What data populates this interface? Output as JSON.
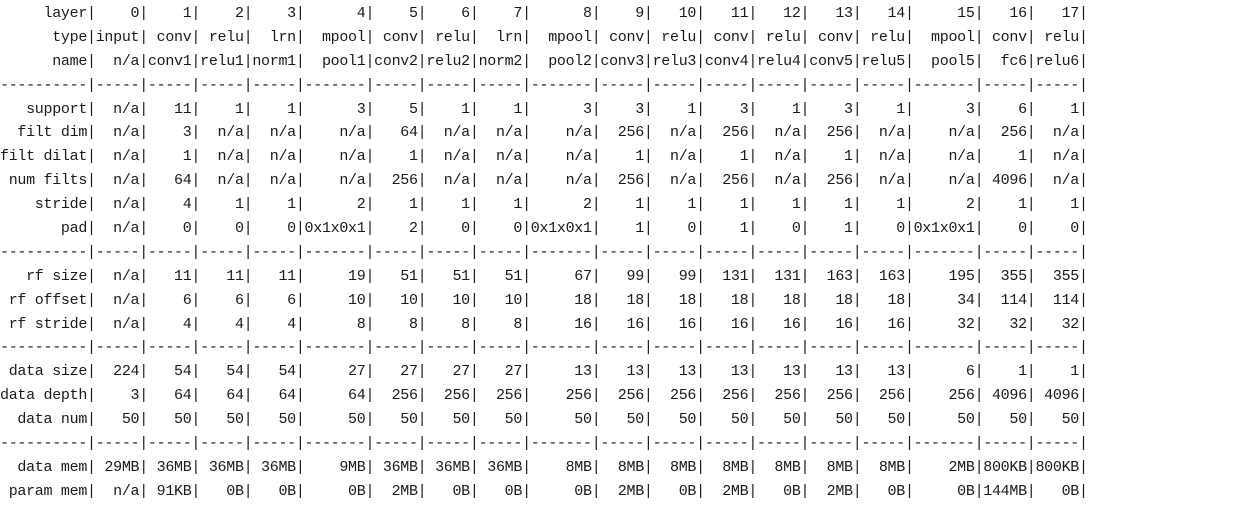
{
  "title": "",
  "table": {
    "columns_widths": null,
    "label_width": 10,
    "header_rows": [
      {
        "label": "layer",
        "cells": [
          "0",
          "1",
          "2",
          "3",
          "4",
          "5",
          "6",
          "7",
          "8",
          "9",
          "10",
          "11",
          "12",
          "13",
          "14",
          "15",
          "16",
          "17"
        ]
      },
      {
        "label": "type",
        "cells": [
          "input",
          "conv",
          "relu",
          "lrn",
          "mpool",
          "conv",
          "relu",
          "lrn",
          "mpool",
          "conv",
          "relu",
          "conv",
          "relu",
          "conv",
          "relu",
          "mpool",
          "conv",
          "relu"
        ]
      },
      {
        "label": "name",
        "cells": [
          "n/a",
          "conv1",
          "relu1",
          "norm1",
          "pool1",
          "conv2",
          "relu2",
          "norm2",
          "pool2",
          "conv3",
          "relu3",
          "conv4",
          "relu4",
          "conv5",
          "relu5",
          "pool5",
          "fc6",
          "relu6"
        ]
      }
    ],
    "sections": [
      [
        {
          "label": "support",
          "cells": [
            "n/a",
            "11",
            "1",
            "1",
            "3",
            "5",
            "1",
            "1",
            "3",
            "3",
            "1",
            "3",
            "1",
            "3",
            "1",
            "3",
            "6",
            "1"
          ]
        },
        {
          "label": "filt dim",
          "cells": [
            "n/a",
            "3",
            "n/a",
            "n/a",
            "n/a",
            "64",
            "n/a",
            "n/a",
            "n/a",
            "256",
            "n/a",
            "256",
            "n/a",
            "256",
            "n/a",
            "n/a",
            "256",
            "n/a"
          ]
        },
        {
          "label": "filt dilat",
          "cells": [
            "n/a",
            "1",
            "n/a",
            "n/a",
            "n/a",
            "1",
            "n/a",
            "n/a",
            "n/a",
            "1",
            "n/a",
            "1",
            "n/a",
            "1",
            "n/a",
            "n/a",
            "1",
            "n/a"
          ]
        },
        {
          "label": "num filts",
          "cells": [
            "n/a",
            "64",
            "n/a",
            "n/a",
            "n/a",
            "256",
            "n/a",
            "n/a",
            "n/a",
            "256",
            "n/a",
            "256",
            "n/a",
            "256",
            "n/a",
            "n/a",
            "4096",
            "n/a"
          ]
        },
        {
          "label": "stride",
          "cells": [
            "n/a",
            "4",
            "1",
            "1",
            "2",
            "1",
            "1",
            "1",
            "2",
            "1",
            "1",
            "1",
            "1",
            "1",
            "1",
            "2",
            "1",
            "1"
          ]
        },
        {
          "label": "pad",
          "cells": [
            "n/a",
            "0",
            "0",
            "0",
            "0x1x0x1",
            "2",
            "0",
            "0",
            "0x1x0x1",
            "1",
            "0",
            "1",
            "0",
            "1",
            "0",
            "0x1x0x1",
            "0",
            "0"
          ]
        }
      ],
      [
        {
          "label": "rf size",
          "cells": [
            "n/a",
            "11",
            "11",
            "11",
            "19",
            "51",
            "51",
            "51",
            "67",
            "99",
            "99",
            "131",
            "131",
            "163",
            "163",
            "195",
            "355",
            "355"
          ]
        },
        {
          "label": "rf offset",
          "cells": [
            "n/a",
            "6",
            "6",
            "6",
            "10",
            "10",
            "10",
            "10",
            "18",
            "18",
            "18",
            "18",
            "18",
            "18",
            "18",
            "34",
            "114",
            "114"
          ]
        },
        {
          "label": "rf stride",
          "cells": [
            "n/a",
            "4",
            "4",
            "4",
            "8",
            "8",
            "8",
            "8",
            "16",
            "16",
            "16",
            "16",
            "16",
            "16",
            "16",
            "32",
            "32",
            "32"
          ]
        }
      ],
      [
        {
          "label": "data size",
          "cells": [
            "224",
            "54",
            "54",
            "54",
            "27",
            "27",
            "27",
            "27",
            "13",
            "13",
            "13",
            "13",
            "13",
            "13",
            "13",
            "6",
            "1",
            "1"
          ]
        },
        {
          "label": "data depth",
          "cells": [
            "3",
            "64",
            "64",
            "64",
            "64",
            "256",
            "256",
            "256",
            "256",
            "256",
            "256",
            "256",
            "256",
            "256",
            "256",
            "256",
            "4096",
            "4096"
          ]
        },
        {
          "label": "data num",
          "cells": [
            "50",
            "50",
            "50",
            "50",
            "50",
            "50",
            "50",
            "50",
            "50",
            "50",
            "50",
            "50",
            "50",
            "50",
            "50",
            "50",
            "50",
            "50"
          ]
        }
      ],
      [
        {
          "label": "data mem",
          "cells": [
            "29MB",
            "36MB",
            "36MB",
            "36MB",
            "9MB",
            "36MB",
            "36MB",
            "36MB",
            "8MB",
            "8MB",
            "8MB",
            "8MB",
            "8MB",
            "8MB",
            "8MB",
            "2MB",
            "800KB",
            "800KB"
          ]
        },
        {
          "label": "param mem",
          "cells": [
            "n/a",
            "91KB",
            "0B",
            "0B",
            "0B",
            "2MB",
            "0B",
            "0B",
            "0B",
            "2MB",
            "0B",
            "2MB",
            "0B",
            "2MB",
            "0B",
            "0B",
            "144MB",
            "0B"
          ]
        }
      ]
    ]
  }
}
